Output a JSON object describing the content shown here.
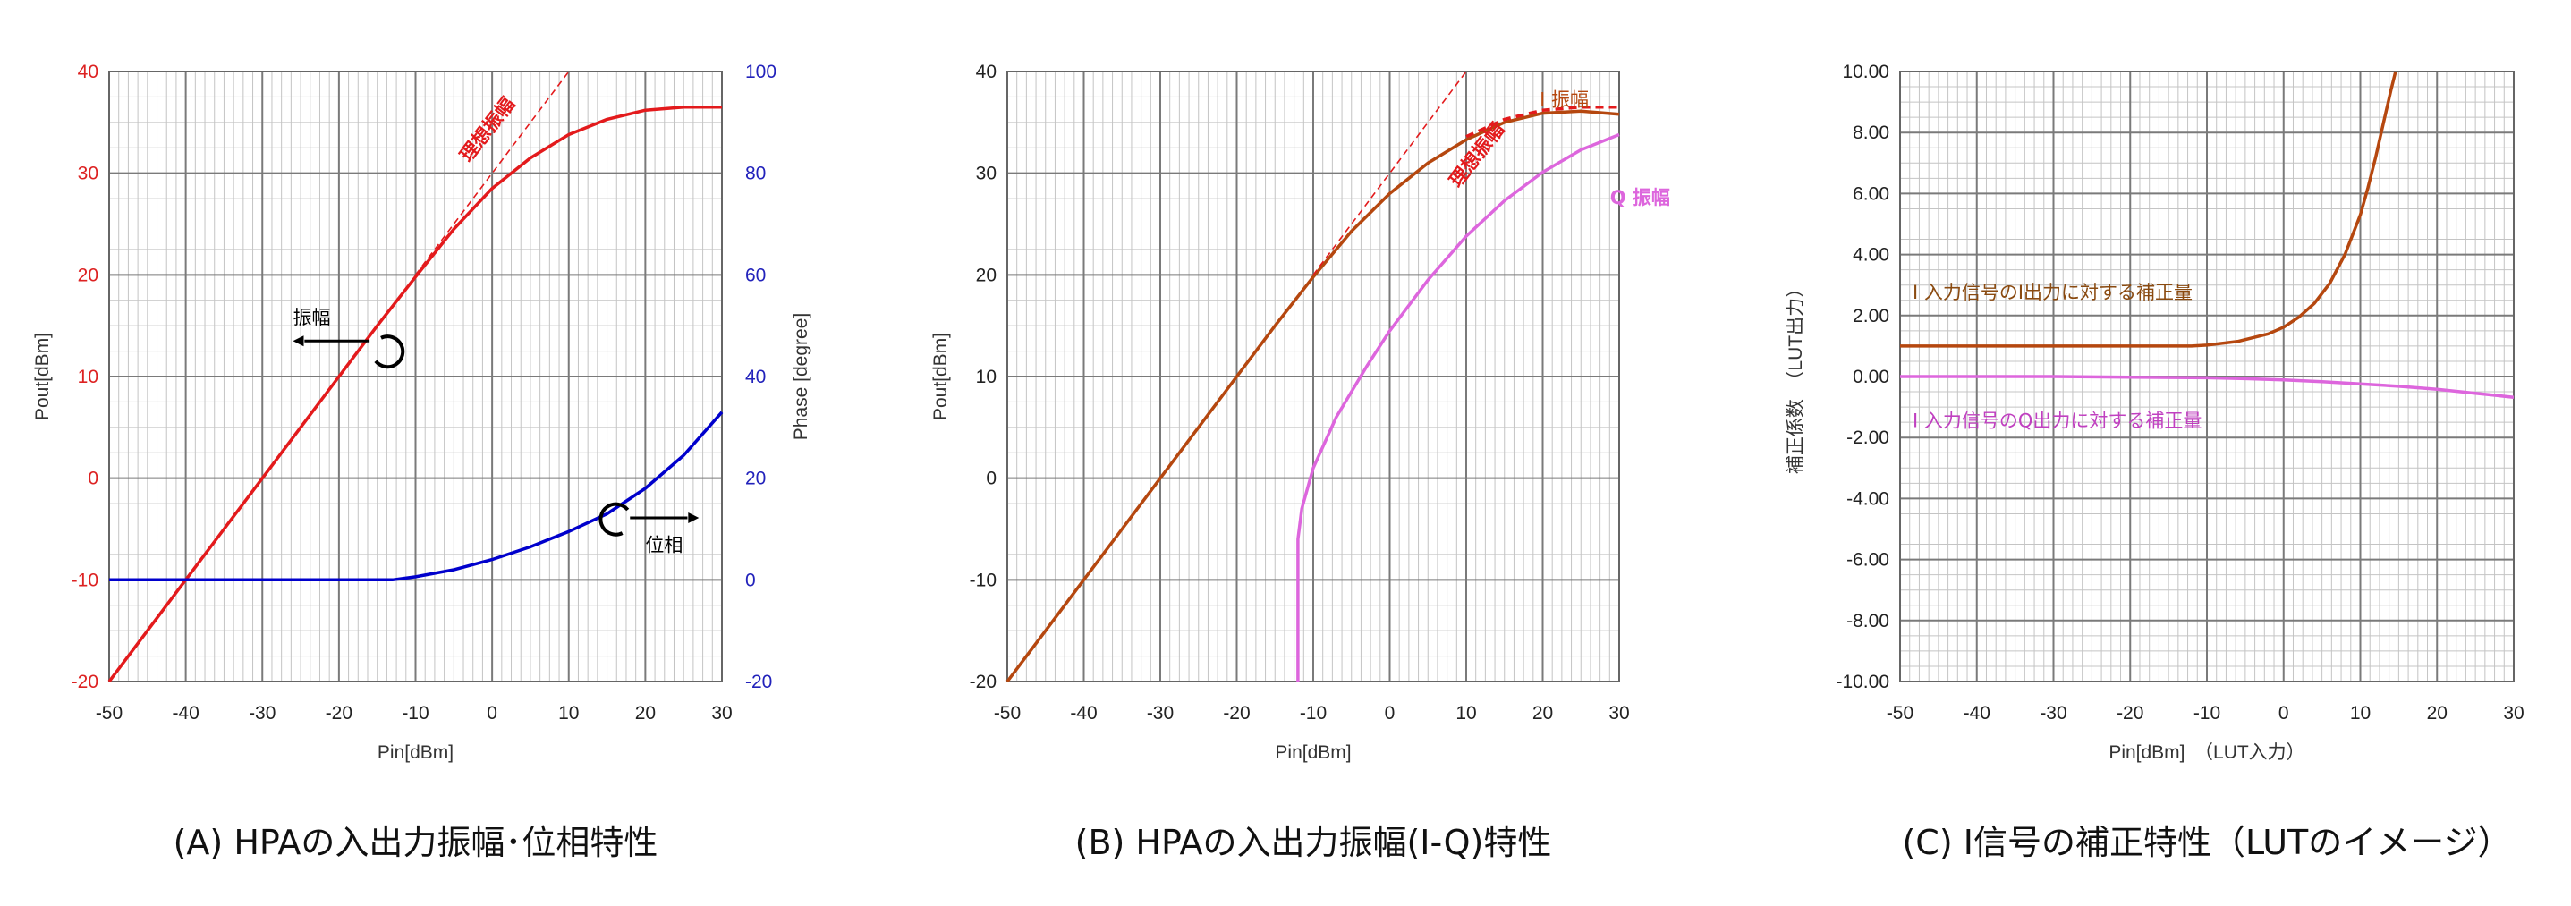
{
  "colors": {
    "red": "#e31a1c",
    "blue": "#0000cc",
    "brown": "#b5470f",
    "pink": "#dd66dd",
    "axis_red": "#dd2222",
    "axis_blue": "#2222bb",
    "legend_brown": "#8a4a10",
    "legend_pink": "#c040c0",
    "grid_major": "#7a7a7a",
    "grid_minor": "#c4c4c4"
  },
  "chart_data": [
    {
      "type": "line",
      "caption": "(A) HPAの入出力振幅･位相特性",
      "xlabel": "Pin[dBm]",
      "ylabel": "Pout[dBm]",
      "y2label": "Phase [degree]",
      "xlim": [
        -50,
        30
      ],
      "ylim": [
        -20,
        40
      ],
      "y2lim": [
        -20,
        100
      ],
      "xticks": [
        "-50",
        "-40",
        "-30",
        "-20",
        "-10",
        "0",
        "10",
        "20",
        "30"
      ],
      "yticks": [
        "-20",
        "-10",
        "0",
        "10",
        "20",
        "30",
        "40"
      ],
      "y2ticks": [
        "-20",
        "0",
        "20",
        "40",
        "60",
        "80",
        "100"
      ],
      "grid": true,
      "series": [
        {
          "key": "amp",
          "axis": "left",
          "color": "red",
          "x": [
            -50,
            -45,
            -40,
            -35,
            -30,
            -25,
            -20,
            -15,
            -10,
            -5,
            0,
            5,
            10,
            15,
            20,
            25,
            30
          ],
          "y": [
            -20,
            -15,
            -10,
            -5,
            0,
            5,
            10,
            15,
            19.8,
            24.5,
            28.5,
            31.5,
            33.8,
            35.3,
            36.2,
            36.5,
            36.5
          ]
        },
        {
          "key": "phase",
          "axis": "right",
          "color": "blue",
          "x": [
            -50,
            -40,
            -30,
            -20,
            -13,
            -10,
            -5,
            0,
            5,
            10,
            15,
            20,
            25,
            30
          ],
          "y": [
            0,
            0,
            0,
            0,
            0,
            0.6,
            2,
            4,
            6.5,
            9.5,
            13,
            18,
            24.5,
            33
          ]
        },
        {
          "key": "ideal",
          "axis": "left",
          "color": "red",
          "dashed": true,
          "thin": true,
          "x": [
            -10,
            10
          ],
          "y": [
            20,
            40
          ]
        }
      ],
      "annotations": [
        {
          "text": "理想振幅",
          "color": "red"
        },
        {
          "text": "振幅",
          "color": "black"
        },
        {
          "text": "位相",
          "color": "black"
        }
      ]
    },
    {
      "type": "line",
      "caption": "(B) HPAの入出力振幅(I-Q)特性",
      "xlabel": "Pin[dBm]",
      "ylabel": "Pout[dBm]",
      "xlim": [
        -50,
        30
      ],
      "ylim": [
        -20,
        40
      ],
      "xticks": [
        "-50",
        "-40",
        "-30",
        "-20",
        "-10",
        "0",
        "10",
        "20",
        "30"
      ],
      "yticks": [
        "-20",
        "-10",
        "0",
        "10",
        "20",
        "30",
        "40"
      ],
      "grid": true,
      "series": [
        {
          "key": "i_amp",
          "axis": "left",
          "color": "brown",
          "x": [
            -50,
            -45,
            -40,
            -35,
            -30,
            -25,
            -20,
            -15,
            -10,
            -5,
            0,
            5,
            10,
            15,
            20,
            25,
            30
          ],
          "y": [
            -20,
            -15,
            -10,
            -5,
            0,
            5,
            10,
            15,
            19.8,
            24.3,
            28,
            31,
            33.3,
            35,
            35.9,
            36.1,
            35.8
          ]
        },
        {
          "key": "i_amp_dashed",
          "axis": "left",
          "color": "red",
          "dashed": true,
          "x": [
            10,
            15,
            20,
            25,
            30
          ],
          "y": [
            33.6,
            35.3,
            36.2,
            36.5,
            36.5
          ]
        },
        {
          "key": "q_amp",
          "axis": "left",
          "color": "pink",
          "x": [
            -12,
            -12,
            -11.5,
            -10,
            -7,
            -3,
            0,
            5,
            10,
            15,
            20,
            25,
            30
          ],
          "y": [
            -20,
            -6,
            -3,
            1,
            6,
            11,
            14.5,
            19.5,
            23.8,
            27.3,
            30.1,
            32.3,
            33.8
          ]
        },
        {
          "key": "ideal",
          "axis": "left",
          "color": "red",
          "dashed": true,
          "thin": true,
          "x": [
            -10,
            10
          ],
          "y": [
            20,
            40
          ]
        }
      ],
      "annotations": [
        {
          "text": "理想振幅",
          "color": "red"
        },
        {
          "text": "I 振幅",
          "color": "brown"
        },
        {
          "text": "Q 振幅",
          "color": "pink"
        }
      ]
    },
    {
      "type": "line",
      "caption": "(C) I信号の補正特性（LUTのイメージ）",
      "xlabel": "Pin[dBm]　（LUT入力）",
      "ylabel": "補正係数　（LUT出力）",
      "xlim": [
        -50,
        30
      ],
      "ylim": [
        -10,
        10
      ],
      "xticks": [
        "-50",
        "-40",
        "-30",
        "-20",
        "-10",
        "0",
        "10",
        "20",
        "30"
      ],
      "yticks": [
        "-10.00",
        "-8.00",
        "-6.00",
        "-4.00",
        "-2.00",
        "0.00",
        "2.00",
        "4.00",
        "6.00",
        "8.00",
        "10.00"
      ],
      "grid": true,
      "series": [
        {
          "key": "i_corr",
          "axis": "left",
          "color": "brown",
          "x": [
            -50,
            -40,
            -30,
            -20,
            -12,
            -10,
            -6,
            -2,
            0,
            2,
            4,
            6,
            8,
            10,
            11,
            12,
            13,
            14,
            14.6
          ],
          "y": [
            1,
            1,
            1,
            1,
            1,
            1.03,
            1.15,
            1.4,
            1.62,
            1.95,
            2.4,
            3.05,
            4,
            5.3,
            6.2,
            7.2,
            8.3,
            9.4,
            10
          ]
        },
        {
          "key": "q_corr",
          "axis": "left",
          "color": "pink",
          "x": [
            -50,
            -30,
            -20,
            -10,
            -5,
            0,
            5,
            10,
            15,
            20,
            25,
            30
          ],
          "y": [
            0,
            0,
            -0.02,
            -0.04,
            -0.07,
            -0.11,
            -0.17,
            -0.24,
            -0.32,
            -0.42,
            -0.55,
            -0.68
          ]
        }
      ],
      "annotations": [
        {
          "text": "I 入力信号のI出力に対する補正量",
          "color": "legend_brown"
        },
        {
          "text": "I 入力信号のQ出力に対する補正量",
          "color": "legend_pink"
        }
      ]
    }
  ]
}
